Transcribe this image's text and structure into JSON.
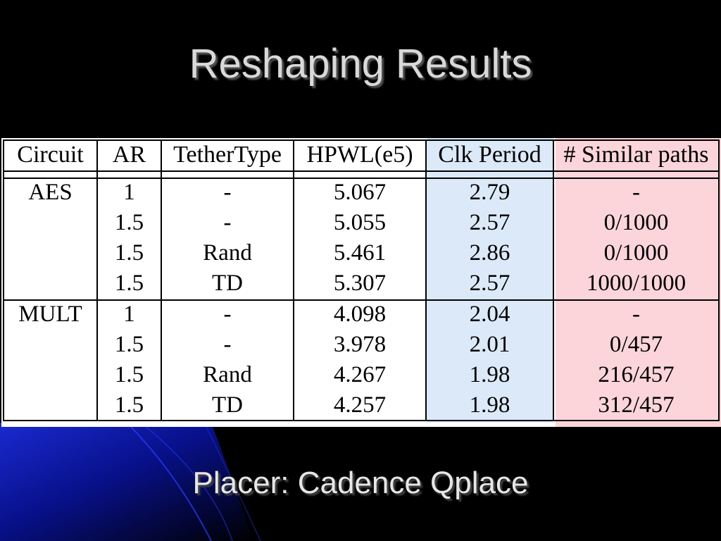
{
  "slide": {
    "title": "Reshaping Results",
    "footer": "Placer: Cadence Qplace"
  },
  "table": {
    "headers": [
      "Circuit",
      "AR",
      "TetherType",
      "HPWL(e5)",
      "Clk Period",
      "# Similar paths"
    ],
    "groups": [
      {
        "circuit": "AES",
        "rows": [
          {
            "ar": "1",
            "tether": "-",
            "hpwl": "5.067",
            "clk": "2.79",
            "similar": "-"
          },
          {
            "ar": "1.5",
            "tether": "-",
            "hpwl": "5.055",
            "clk": "2.57",
            "similar": "0/1000"
          },
          {
            "ar": "1.5",
            "tether": "Rand",
            "hpwl": "5.461",
            "clk": "2.86",
            "similar": "0/1000"
          },
          {
            "ar": "1.5",
            "tether": "TD",
            "hpwl": "5.307",
            "clk": "2.57",
            "similar": "1000/1000"
          }
        ]
      },
      {
        "circuit": "MULT",
        "rows": [
          {
            "ar": "1",
            "tether": "-",
            "hpwl": "4.098",
            "clk": "2.04",
            "similar": "-"
          },
          {
            "ar": "1.5",
            "tether": "-",
            "hpwl": "3.978",
            "clk": "2.01",
            "similar": "0/457"
          },
          {
            "ar": "1.5",
            "tether": "Rand",
            "hpwl": "4.267",
            "clk": "1.98",
            "similar": "216/457"
          },
          {
            "ar": "1.5",
            "tether": "TD",
            "hpwl": "4.257",
            "clk": "1.98",
            "similar": "312/457"
          }
        ]
      }
    ]
  },
  "colors": {
    "clk_column_shade": "#dce9f8",
    "similar_column_shade": "#fbd5d9",
    "title_text": "#d9d9d9",
    "background_accent": "#0a1a9a"
  }
}
